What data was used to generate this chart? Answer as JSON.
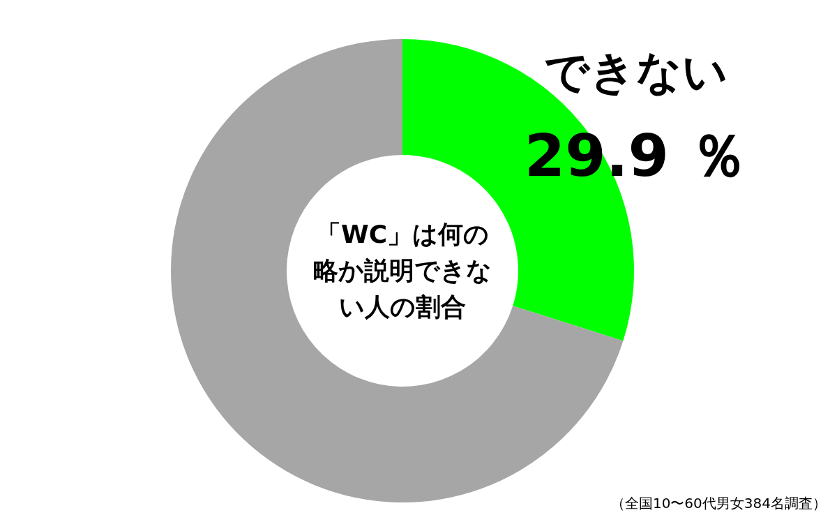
{
  "chart_data": {
    "type": "donut",
    "title": "「WC」は何の略か説明できない人の割合",
    "categories": [
      "できない",
      null
    ],
    "values": [
      29.9,
      70.1
    ],
    "colors": [
      "#00ff00",
      "#a6a6a6"
    ],
    "value_labels": [
      "29.9 ％",
      null
    ],
    "annotations": [
      "（全国10〜60代男女384名調査）"
    ]
  }
}
